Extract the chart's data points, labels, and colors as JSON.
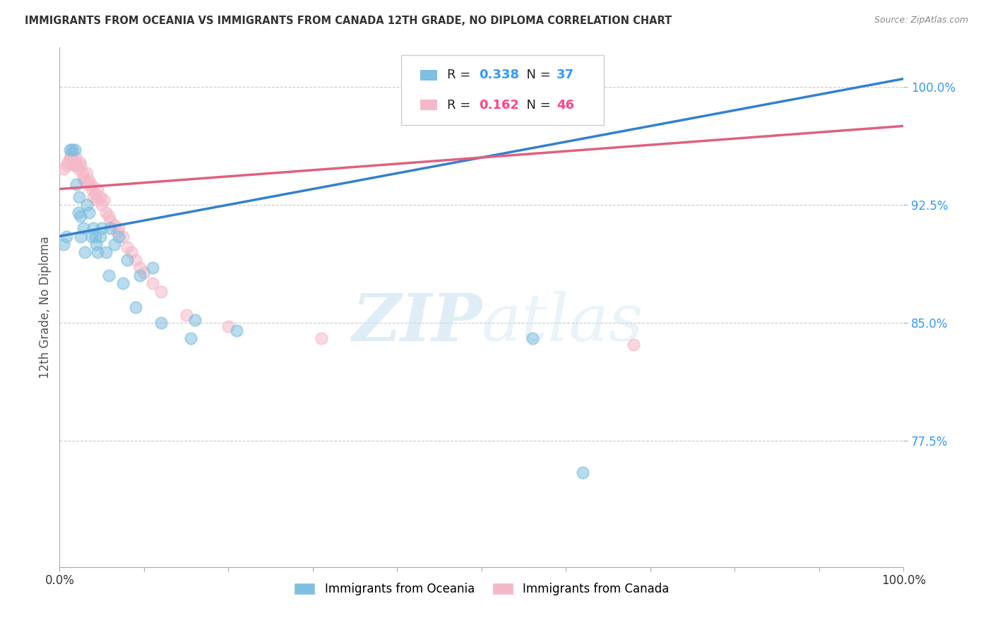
{
  "title": "IMMIGRANTS FROM OCEANIA VS IMMIGRANTS FROM CANADA 12TH GRADE, NO DIPLOMA CORRELATION CHART",
  "source": "Source: ZipAtlas.com",
  "ylabel": "12th Grade, No Diploma",
  "xlim": [
    0.0,
    1.0
  ],
  "ylim": [
    0.695,
    1.025
  ],
  "yticks": [
    0.775,
    0.85,
    0.925,
    1.0
  ],
  "ytick_labels": [
    "77.5%",
    "85.0%",
    "92.5%",
    "100.0%"
  ],
  "xtick_positions": [
    0.0,
    0.1,
    0.2,
    0.3,
    0.4,
    0.5,
    0.6,
    0.7,
    0.8,
    0.9,
    1.0
  ],
  "xtick_labels": [
    "0.0%",
    "",
    "",
    "",
    "",
    "",
    "",
    "",
    "",
    "",
    "100.0%"
  ],
  "blue_color": "#7fbfdf",
  "pink_color": "#f5b8c8",
  "blue_line_color": "#3380cc",
  "pink_line_color": "#e06080",
  "legend_blue_label": "Immigrants from Oceania",
  "legend_pink_label": "Immigrants from Canada",
  "r_blue": "0.338",
  "n_blue": "37",
  "r_pink": "0.162",
  "n_pink": "46",
  "watermark_zip": "ZIP",
  "watermark_atlas": "atlas",
  "blue_trend_x0": 0.0,
  "blue_trend_y0": 0.905,
  "blue_trend_x1": 1.0,
  "blue_trend_y1": 1.005,
  "pink_trend_x0": 0.0,
  "pink_trend_y0": 0.935,
  "pink_trend_x1": 1.0,
  "pink_trend_y1": 0.975,
  "blue_scatter_x": [
    0.005,
    0.008,
    0.012,
    0.015,
    0.018,
    0.02,
    0.022,
    0.023,
    0.025,
    0.025,
    0.028,
    0.03,
    0.032,
    0.035,
    0.038,
    0.04,
    0.042,
    0.043,
    0.045,
    0.048,
    0.05,
    0.055,
    0.058,
    0.06,
    0.065,
    0.07,
    0.075,
    0.08,
    0.09,
    0.095,
    0.11,
    0.12,
    0.155,
    0.16,
    0.21,
    0.56,
    0.62
  ],
  "blue_scatter_y": [
    0.9,
    0.905,
    0.96,
    0.96,
    0.96,
    0.938,
    0.92,
    0.93,
    0.905,
    0.918,
    0.91,
    0.895,
    0.925,
    0.92,
    0.905,
    0.91,
    0.905,
    0.9,
    0.895,
    0.905,
    0.91,
    0.895,
    0.88,
    0.91,
    0.9,
    0.905,
    0.875,
    0.89,
    0.86,
    0.88,
    0.885,
    0.85,
    0.84,
    0.852,
    0.845,
    0.84,
    0.755
  ],
  "pink_scatter_x": [
    0.005,
    0.008,
    0.01,
    0.012,
    0.013,
    0.015,
    0.017,
    0.018,
    0.019,
    0.02,
    0.022,
    0.024,
    0.025,
    0.027,
    0.028,
    0.03,
    0.032,
    0.034,
    0.035,
    0.037,
    0.038,
    0.04,
    0.042,
    0.044,
    0.045,
    0.048,
    0.05,
    0.052,
    0.055,
    0.058,
    0.06,
    0.065,
    0.068,
    0.07,
    0.075,
    0.08,
    0.085,
    0.09,
    0.095,
    0.1,
    0.11,
    0.12,
    0.15,
    0.2,
    0.31,
    0.68
  ],
  "pink_scatter_y": [
    0.948,
    0.95,
    0.952,
    0.955,
    0.956,
    0.958,
    0.95,
    0.952,
    0.955,
    0.95,
    0.948,
    0.952,
    0.95,
    0.945,
    0.942,
    0.94,
    0.945,
    0.938,
    0.94,
    0.938,
    0.935,
    0.93,
    0.932,
    0.928,
    0.935,
    0.93,
    0.925,
    0.928,
    0.92,
    0.918,
    0.915,
    0.912,
    0.908,
    0.91,
    0.905,
    0.898,
    0.895,
    0.89,
    0.885,
    0.882,
    0.875,
    0.87,
    0.855,
    0.848,
    0.84,
    0.836
  ]
}
